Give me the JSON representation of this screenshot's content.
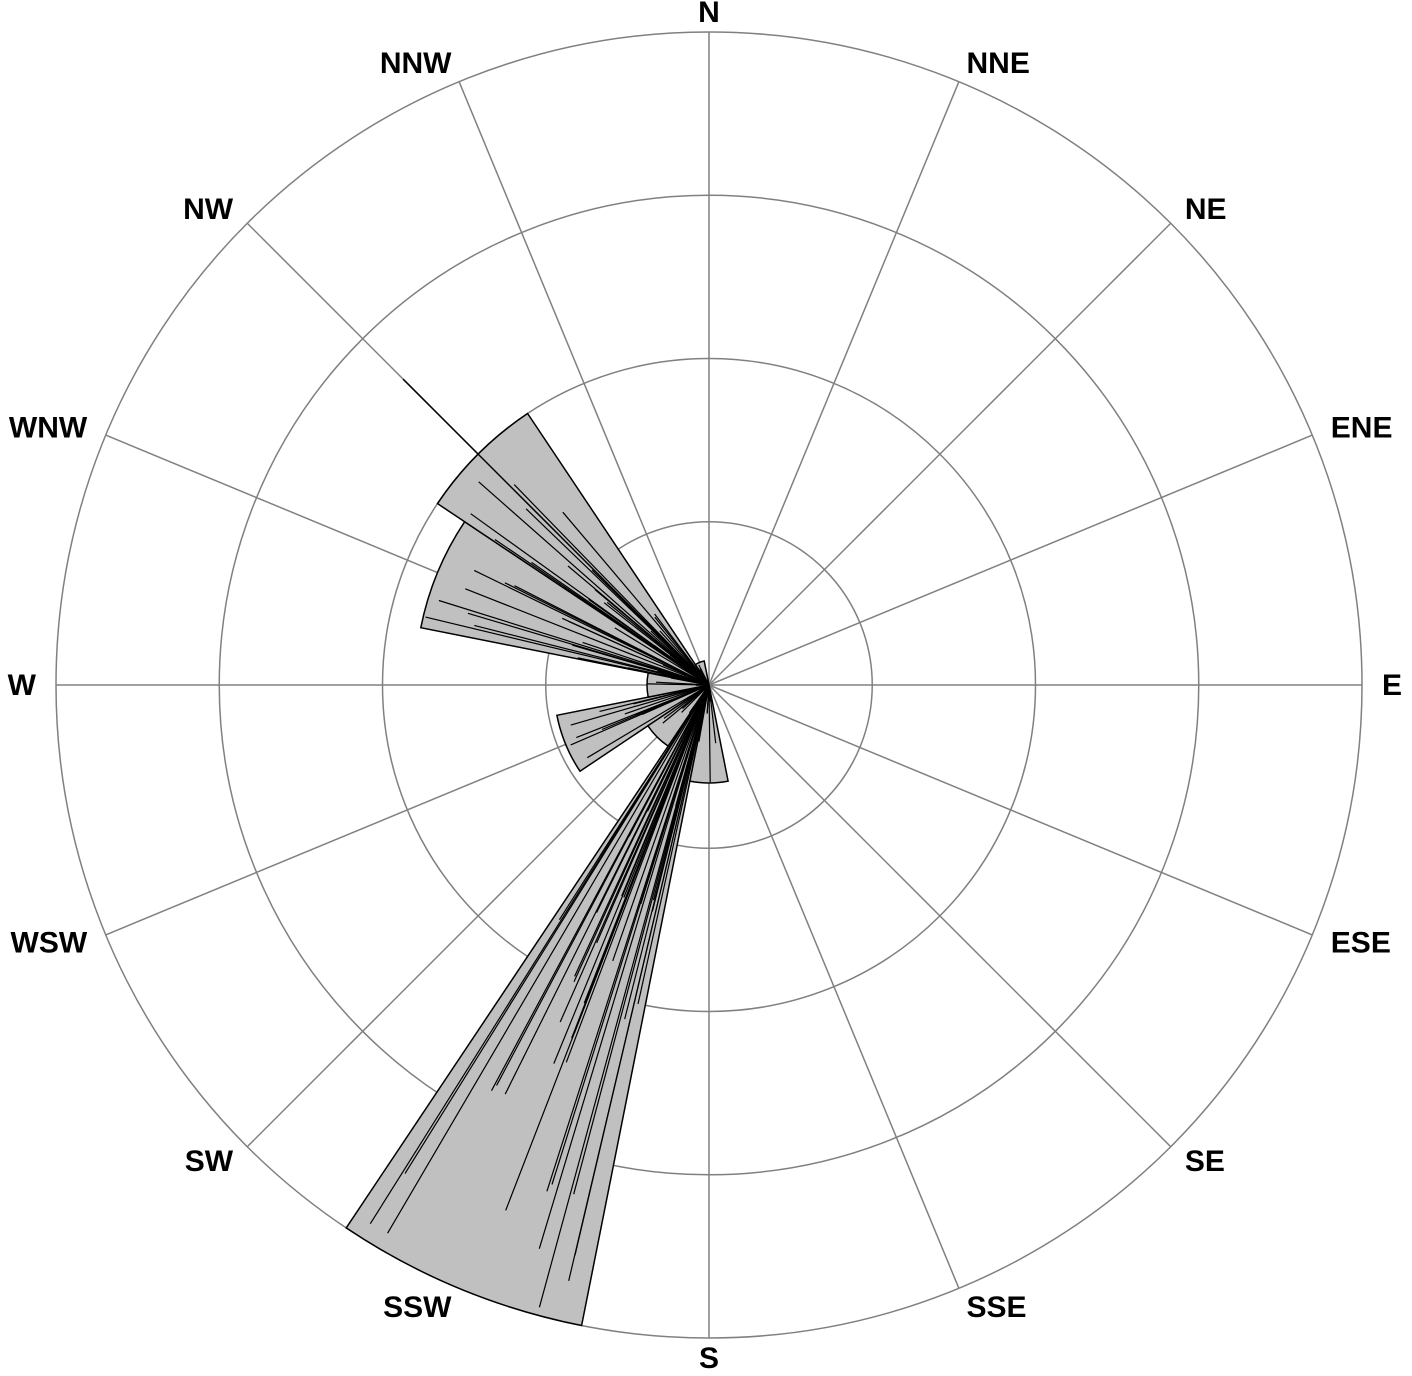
{
  "chart_data": {
    "type": "wind-rose",
    "title": "",
    "directions": [
      "N",
      "NNE",
      "NE",
      "ENE",
      "E",
      "ESE",
      "SE",
      "SSE",
      "S",
      "SSW",
      "SW",
      "WSW",
      "W",
      "WNW",
      "NW",
      "NNW"
    ],
    "rmax": 4,
    "rings": [
      1,
      2,
      3,
      4
    ],
    "grid": true,
    "sectors": [
      {
        "direction": "SSW",
        "value": 4.0
      },
      {
        "direction": "WNW",
        "value": 1.8
      },
      {
        "direction": "NW",
        "value": 2.0
      },
      {
        "direction": "WSW",
        "value": 0.95
      },
      {
        "direction": "W",
        "value": 0.38
      },
      {
        "direction": "SW",
        "value": 0.45
      },
      {
        "direction": "S",
        "value": 0.6
      },
      {
        "direction": "NNW",
        "value": 0.15
      }
    ],
    "colors": {
      "sector_fill": "#c0c0c0",
      "sector_stroke": "#000000",
      "grid": "#808080",
      "lines": "#000000"
    }
  }
}
